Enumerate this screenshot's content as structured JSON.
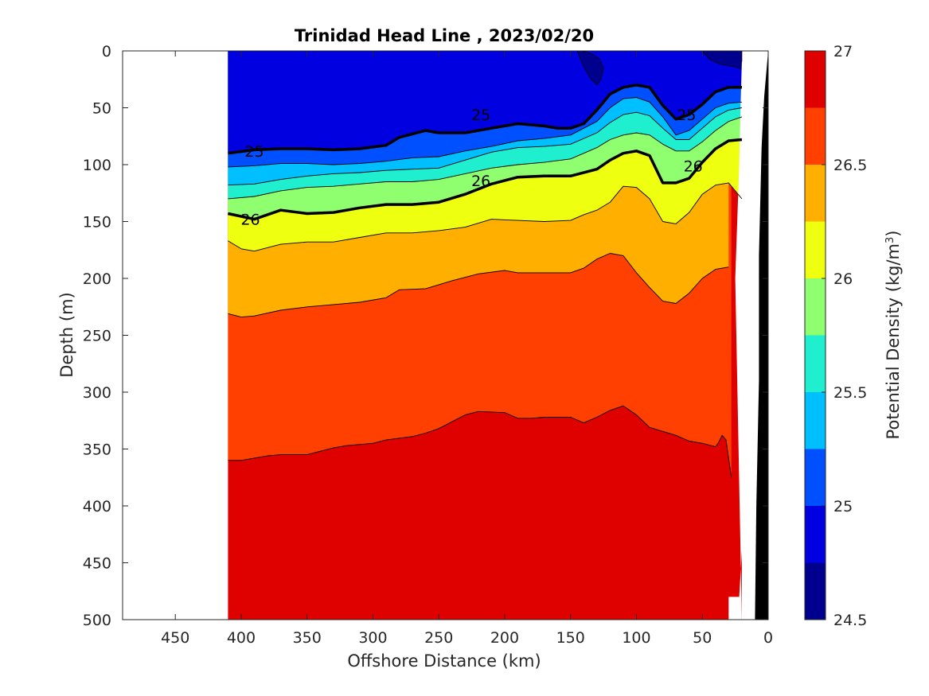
{
  "chart_data": {
    "type": "contour",
    "title": "Trinidad Head Line , 2023/02/20",
    "xlabel": "Offshore Distance (km)",
    "ylabel": "Depth (m)",
    "colorbar_label": "Potential Density (kg/m",
    "colorbar_label_sup": "3",
    "colorbar_label_end": ")",
    "xlim": [
      490,
      0
    ],
    "x_reversed": true,
    "ylim": [
      0,
      500
    ],
    "y_reversed": true,
    "xticks": [
      450,
      400,
      350,
      300,
      250,
      200,
      150,
      100,
      50,
      0
    ],
    "yticks": [
      0,
      50,
      100,
      150,
      200,
      250,
      300,
      350,
      400,
      450,
      500
    ],
    "colorbar_ticks": [
      24.5,
      25,
      25.5,
      26,
      26.5,
      27
    ],
    "colorbar_range": [
      24.5,
      27
    ],
    "levels": [
      24.75,
      25,
      25.25,
      25.5,
      25.75,
      26,
      26.25,
      26.5,
      26.75
    ],
    "colors": [
      "#00008f",
      "#0000e0",
      "#0050ff",
      "#00bfff",
      "#20efcf",
      "#8fff70",
      "#efff10",
      "#ffaf00",
      "#ff4000",
      "#df0000"
    ],
    "highlighted_contours": [
      25,
      26
    ],
    "contour_labels": [
      {
        "text": "25",
        "x": 390,
        "y": 88
      },
      {
        "text": "25",
        "x": 218,
        "y": 56
      },
      {
        "text": "25",
        "x": 62,
        "y": 56
      },
      {
        "text": "26",
        "x": 393,
        "y": 148
      },
      {
        "text": "26",
        "x": 218,
        "y": 114
      },
      {
        "text": "26",
        "x": 57,
        "y": 101
      }
    ],
    "data_extent_km": [
      410,
      20
    ],
    "contours": [
      {
        "level": 25.0,
        "x": [
          410,
          390,
          370,
          350,
          330,
          310,
          290,
          280,
          260,
          250,
          230,
          210,
          190,
          170,
          160,
          150,
          140,
          130,
          120,
          110,
          100,
          90,
          80,
          70,
          60,
          50,
          40,
          30,
          20
        ],
        "depth": [
          90,
          87,
          86,
          86,
          87,
          86,
          83,
          76,
          70,
          72,
          72,
          68,
          64,
          66,
          68,
          68,
          64,
          52,
          38,
          32,
          30,
          32,
          48,
          60,
          56,
          47,
          36,
          32,
          32
        ]
      },
      {
        "level": 25.25,
        "x": [
          410,
          390,
          370,
          350,
          330,
          310,
          290,
          270,
          250,
          230,
          210,
          190,
          170,
          150,
          130,
          120,
          110,
          100,
          90,
          80,
          70,
          60,
          50,
          40,
          30,
          20
        ],
        "depth": [
          102,
          101,
          99,
          99,
          100,
          99,
          97,
          94,
          93,
          88,
          84,
          79,
          77,
          74,
          62,
          50,
          42,
          41,
          45,
          58,
          74,
          70,
          60,
          50,
          46,
          45
        ]
      },
      {
        "level": 25.5,
        "x": [
          410,
          390,
          370,
          350,
          330,
          310,
          290,
          270,
          250,
          230,
          210,
          190,
          170,
          150,
          130,
          120,
          110,
          100,
          90,
          80,
          70,
          60,
          50,
          40,
          30,
          20
        ],
        "depth": [
          118,
          117,
          113,
          110,
          108,
          107,
          105,
          104,
          103,
          96,
          89,
          85,
          84,
          82,
          72,
          63,
          56,
          54,
          57,
          68,
          78,
          78,
          68,
          58,
          52,
          50
        ]
      },
      {
        "level": 25.75,
        "x": [
          410,
          390,
          370,
          350,
          330,
          310,
          290,
          270,
          250,
          230,
          210,
          190,
          170,
          150,
          130,
          120,
          110,
          100,
          90,
          80,
          70,
          60,
          50,
          40,
          30,
          20
        ],
        "depth": [
          130,
          128,
          123,
          120,
          119,
          117,
          115,
          115,
          113,
          108,
          103,
          100,
          98,
          95,
          85,
          78,
          74,
          72,
          74,
          82,
          88,
          88,
          80,
          70,
          62,
          58
        ]
      },
      {
        "level": 26.0,
        "x": [
          410,
          390,
          370,
          350,
          330,
          310,
          290,
          270,
          250,
          230,
          210,
          190,
          170,
          150,
          130,
          120,
          110,
          100,
          90,
          80,
          70,
          60,
          50,
          40,
          30,
          20
        ],
        "depth": [
          143,
          148,
          140,
          143,
          142,
          138,
          135,
          135,
          133,
          126,
          117,
          111,
          110,
          110,
          104,
          96,
          90,
          88,
          92,
          116,
          116,
          112,
          98,
          86,
          79,
          78
        ]
      },
      {
        "level": 26.25,
        "x": [
          410,
          400,
          390,
          370,
          350,
          330,
          310,
          290,
          270,
          250,
          230,
          210,
          190,
          170,
          150,
          140,
          130,
          120,
          110,
          100,
          90,
          80,
          70,
          60,
          50,
          40,
          30,
          20
        ],
        "depth": [
          167,
          174,
          176,
          170,
          168,
          168,
          164,
          160,
          160,
          158,
          155,
          148,
          149,
          150,
          149,
          144,
          140,
          133,
          119,
          120,
          130,
          150,
          152,
          142,
          126,
          118,
          116,
          130
        ]
      },
      {
        "level": 26.5,
        "x": [
          410,
          400,
          390,
          370,
          350,
          330,
          310,
          290,
          280,
          260,
          240,
          220,
          200,
          190,
          170,
          150,
          140,
          130,
          120,
          110,
          100,
          90,
          80,
          70,
          60,
          50,
          40,
          30
        ],
        "depth": [
          231,
          234,
          233,
          228,
          225,
          223,
          221,
          217,
          210,
          209,
          202,
          196,
          193,
          195,
          195,
          195,
          191,
          183,
          178,
          180,
          195,
          208,
          220,
          222,
          213,
          200,
          192,
          190
        ]
      },
      {
        "level": 26.75,
        "x": [
          410,
          400,
          390,
          380,
          370,
          350,
          330,
          320,
          300,
          290,
          270,
          260,
          250,
          240,
          230,
          220,
          200,
          190,
          180,
          170,
          150,
          140,
          130,
          120,
          110,
          100,
          90,
          70,
          60,
          50,
          40,
          38,
          35,
          32,
          28
        ],
        "depth": [
          360,
          360,
          358,
          356,
          355,
          355,
          349,
          347,
          345,
          342,
          339,
          336,
          332,
          326,
          320,
          317,
          318,
          323,
          323,
          322,
          322,
          327,
          322,
          316,
          312,
          320,
          331,
          338,
          343,
          345,
          348,
          345,
          338,
          342,
          375
        ]
      }
    ],
    "low_patches": [
      {
        "level": 24.75,
        "x": [
          145,
          140,
          135,
          130,
          127,
          125,
          128,
          133,
          138,
          142,
          145
        ],
        "depth": [
          0,
          14,
          24,
          30,
          25,
          15,
          7,
          3,
          1,
          0,
          0
        ]
      },
      {
        "level": 24.75,
        "x": [
          50,
          45,
          40,
          35,
          30,
          25,
          22,
          20,
          20,
          50
        ],
        "depth": [
          0,
          7,
          10,
          12,
          13,
          14,
          15,
          16,
          0,
          0
        ]
      }
    ],
    "bathymetry": {
      "x": [
        20,
        3,
        0,
        0,
        17,
        20,
        21,
        22,
        25,
        20,
        30,
        30,
        22,
        20,
        15,
        20
      ],
      "depth": [
        500,
        500,
        500,
        0,
        0,
        10,
        50,
        100,
        200,
        500,
        500,
        480,
        480,
        440,
        420,
        500
      ]
    },
    "seafloor_black": {
      "x": [
        25,
        0,
        0,
        0,
        3,
        5,
        7,
        7,
        9,
        10
      ],
      "depth": [
        500,
        500,
        0,
        0,
        40,
        85,
        180,
        290,
        400,
        500
      ]
    }
  }
}
